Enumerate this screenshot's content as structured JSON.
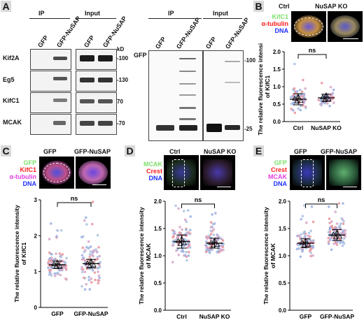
{
  "panelA": {
    "label": "A",
    "ip": "IP",
    "input": "Input",
    "lanes": [
      "GFP",
      "GFP-NuSAP",
      "GFP",
      "GFP-NuSAP"
    ],
    "kd": "kD",
    "rows": [
      {
        "name": "Kif2A",
        "mw": "-100"
      },
      {
        "name": "Eg5",
        "mw": "-130"
      },
      {
        "name": "KifC1",
        "mw": "70"
      },
      {
        "name": "MCAK",
        "mw": "-70"
      }
    ],
    "gfp_blot": {
      "row_label": "GFP",
      "mw_top": "-100",
      "mw_bottom": "-25"
    }
  },
  "panelB": {
    "label": "B",
    "cond": [
      "Ctrl",
      "NuSAP KO"
    ],
    "legend": [
      {
        "text": "KifC1",
        "color": "#7ee06b"
      },
      {
        "text": "α-tubulin",
        "color": "#ff2020"
      },
      {
        "text": "DNA",
        "color": "#2030ff"
      }
    ]
  },
  "panelC": {
    "label": "C",
    "cond": [
      "GFP",
      "GFP-NuSAP"
    ],
    "legend": [
      {
        "text": "GFP",
        "color": "#7ee06b"
      },
      {
        "text": "KifC1",
        "color": "#ff2020"
      },
      {
        "text": "α-tubulin",
        "color": "#e040e0"
      },
      {
        "text": "DNA",
        "color": "#2030ff"
      }
    ]
  },
  "panelD": {
    "label": "D",
    "cond": [
      "Ctrl",
      "NuSAP KO"
    ],
    "legend": [
      {
        "text": "MCAK",
        "color": "#7ee06b"
      },
      {
        "text": "Crest",
        "color": "#ff2020"
      },
      {
        "text": "DNA",
        "color": "#2030ff"
      }
    ]
  },
  "panelE": {
    "label": "E",
    "cond": [
      "GFP",
      "GFP-NuSAP"
    ],
    "legend": [
      {
        "text": "GFP",
        "color": "#7ee06b"
      },
      {
        "text": "Crest",
        "color": "#ff2020"
      },
      {
        "text": "MCAK",
        "color": "#e040e0"
      },
      {
        "text": "DNA",
        "color": "#2030ff"
      }
    ]
  },
  "chart_data": [
    {
      "panel": "B",
      "type": "scatter",
      "ylabel": "The relative fluorescence intensityof KifC1",
      "categories": [
        "Ctrl",
        "NuSAP KO"
      ],
      "yticks": [
        0.0,
        0.5,
        1.0,
        1.5,
        2.0
      ],
      "ylim": [
        0,
        2.0
      ],
      "means": [
        0.64,
        0.68
      ],
      "sd": [
        0.16,
        0.1
      ],
      "spread": [
        0.28,
        0.16
      ],
      "annotation": "ns"
    },
    {
      "panel": "C",
      "type": "scatter",
      "ylabel": "The relative fluorescence intensity of KifC1",
      "categories": [
        "GFP",
        "GFP-NuSAP"
      ],
      "yticks": [
        0,
        1,
        2,
        3
      ],
      "ylim": [
        0,
        3
      ],
      "means": [
        1.19,
        1.22
      ],
      "sd": [
        0.1,
        0.12
      ],
      "spread": [
        0.32,
        0.55
      ],
      "annotation": "ns"
    },
    {
      "panel": "D",
      "type": "scatter",
      "ylabel": "The relative fluorescence intensity of MCAK",
      "categories": [
        "Ctrl",
        "NuSAP KO"
      ],
      "yticks": [
        0.0,
        0.5,
        1.0,
        1.5,
        2.0
      ],
      "ylim": [
        0,
        2.0
      ],
      "means": [
        1.26,
        1.23
      ],
      "sd": [
        0.12,
        0.09
      ],
      "spread": [
        0.24,
        0.18
      ],
      "annotation": "ns"
    },
    {
      "panel": "E",
      "type": "scatter",
      "ylabel": "The relative fluorescence intensity of MCAK",
      "categories": [
        "GFP",
        "GFP-NuSAP"
      ],
      "yticks": [
        0.0,
        0.5,
        1.0,
        1.5,
        2.0
      ],
      "ylim": [
        0,
        2.0
      ],
      "means": [
        1.23,
        1.38
      ],
      "sd": [
        0.08,
        0.1
      ],
      "spread": [
        0.18,
        0.22
      ],
      "annotation": "ns"
    }
  ]
}
